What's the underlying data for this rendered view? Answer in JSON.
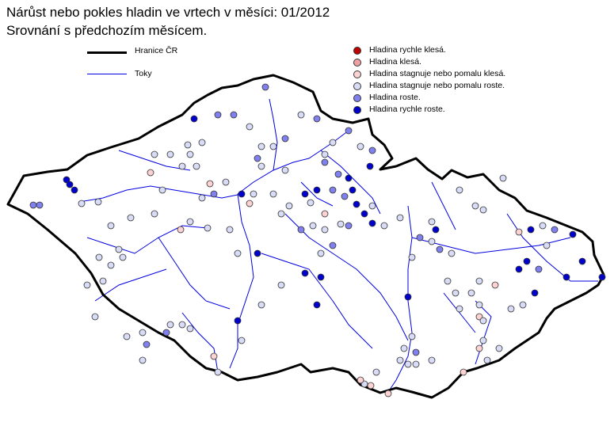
{
  "title": {
    "line1": "Nárůst nebo pokles hladin ve vrtech v měsíci: 01/2012",
    "line2": "Srovnání s předchozím  měsícem."
  },
  "legend_lines": [
    {
      "label": "Hranice ČR",
      "color": "#000000"
    },
    {
      "label": "Toky",
      "color": "#0000e0"
    }
  ],
  "legend_points": [
    {
      "label": "Hladina rychle klesá.",
      "color": "#c00000"
    },
    {
      "label": "Hladina klesá.",
      "color": "#f0a0a0"
    },
    {
      "label": "Hladina stagnuje nebo pomalu klesá.",
      "color": "#fcd2d2"
    },
    {
      "label": "Hladina stagnuje nebo pomalu roste.",
      "color": "#d8dcf6"
    },
    {
      "label": "Hladina roste.",
      "color": "#8080ee"
    },
    {
      "label": "Hladina rychle roste.",
      "color": "#0000cc"
    }
  ]
}
